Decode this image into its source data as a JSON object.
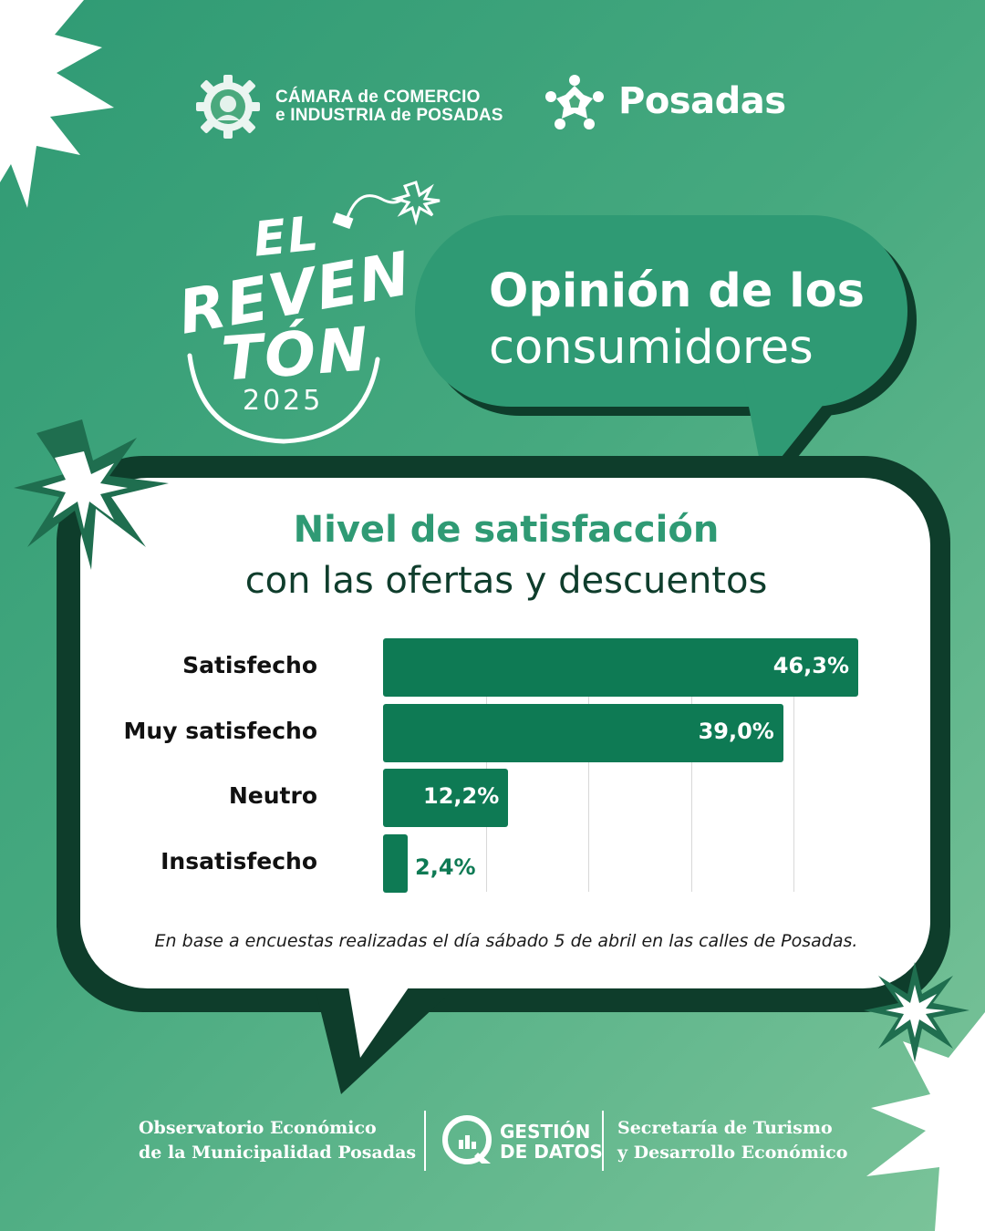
{
  "header": {
    "camara_line1": "CÁMARA de COMERCIO",
    "camara_line2": "e INDUSTRIA de POSADAS",
    "posadas": "Posadas"
  },
  "event": {
    "line1": "EL",
    "line2": "REVEN",
    "line3": "TÓN",
    "year": "2025"
  },
  "headline": {
    "line1": "Opinión de los",
    "line2": "consumidores"
  },
  "card": {
    "title": "Nivel de satisfacción",
    "subtitle": "con las ofertas y descuentos",
    "footnote": "En base a encuestas realizadas el día sábado 5 de abril en las calles de Posadas."
  },
  "chart_data": {
    "type": "bar",
    "orientation": "horizontal",
    "title": "Nivel de satisfacción",
    "subtitle": "con las ofertas y descuentos",
    "categories": [
      "Satisfecho",
      "Muy satisfecho",
      "Neutro",
      "Insatisfecho"
    ],
    "values": [
      46.3,
      39.0,
      12.2,
      2.4
    ],
    "value_labels": [
      "46,3%",
      "39,0%",
      "12,2%",
      "2,4%"
    ],
    "xlim": [
      0,
      50
    ],
    "grid": true,
    "bar_color": "#0e7a54"
  },
  "footer": {
    "observatorio_line1": "Observatorio Económico",
    "observatorio_line2": "de la Municipalidad Posadas",
    "gestion_line1": "GESTIÓN",
    "gestion_line2": "DE DATOS",
    "secretaria_line1": "Secretaría de Turismo",
    "secretaria_line2": "y Desarrollo Económico"
  },
  "colors": {
    "background": "#46a97f",
    "dark_green": "#0e3d2b",
    "bar": "#0e7a54",
    "accent_text": "#2f9a74"
  }
}
